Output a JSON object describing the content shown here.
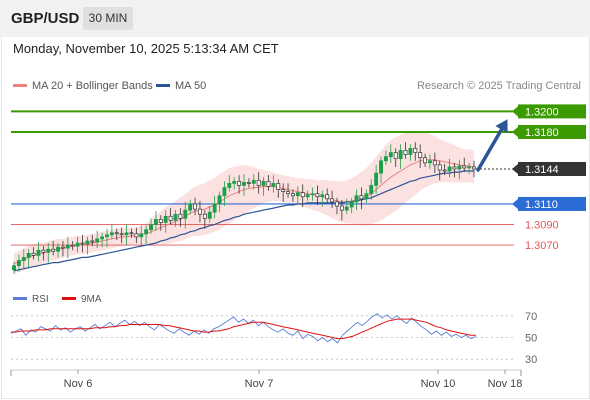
{
  "header": {
    "symbol": "GBP/USD",
    "timeframe": "30 MIN"
  },
  "datetime": "Monday, November 10, 2025 5:13:34 AM CET",
  "legend": {
    "ma20": "MA 20 + Bollinger Bands",
    "ma50": "MA 50",
    "credit": "Research © 2025 Trading Central"
  },
  "colors": {
    "ma20": "#f08080",
    "ma50": "#2c5596",
    "bull": "#1e9e4a",
    "bear": "#333333",
    "green_level": "#3a9a00",
    "blue_level": "#2c6cd6",
    "red_level": "#e05555",
    "current": "#333333"
  },
  "chart_data": [
    {
      "type": "candlestick",
      "title": "",
      "x_ticks": [
        "Nov 6",
        "Nov 7",
        "Nov 10",
        "Nov 18"
      ],
      "y_range": [
        1.3038,
        1.3214
      ],
      "levels": [
        {
          "value": 1.32,
          "label": "1.3200",
          "kind": "resistance"
        },
        {
          "value": 1.318,
          "label": "1.3180",
          "kind": "resistance"
        },
        {
          "value": 1.3144,
          "label": "1.3144",
          "kind": "current"
        },
        {
          "value": 1.311,
          "label": "1.3110",
          "kind": "pivot"
        },
        {
          "value": 1.309,
          "label": "1.3090",
          "kind": "support"
        },
        {
          "value": 1.307,
          "label": "1.3070",
          "kind": "support"
        }
      ],
      "close": [
        1.305,
        1.3055,
        1.3058,
        1.3062,
        1.306,
        1.3065,
        1.3063,
        1.3066,
        1.3064,
        1.3068,
        1.3067,
        1.307,
        1.3069,
        1.3072,
        1.3071,
        1.3074,
        1.3073,
        1.3076,
        1.3078,
        1.308,
        1.3082,
        1.3081,
        1.308,
        1.3082,
        1.3081,
        1.3078,
        1.3081,
        1.3085,
        1.309,
        1.3095,
        1.3092,
        1.3098,
        1.3094,
        1.31,
        1.3096,
        1.3104,
        1.311,
        1.3105,
        1.31,
        1.3096,
        1.3102,
        1.311,
        1.3118,
        1.3126,
        1.313,
        1.3132,
        1.3128,
        1.3131,
        1.313,
        1.3133,
        1.3128,
        1.3132,
        1.3127,
        1.313,
        1.3124,
        1.3122,
        1.312,
        1.3118,
        1.3121,
        1.3117,
        1.3119,
        1.312,
        1.3117,
        1.3119,
        1.3115,
        1.3112,
        1.3108,
        1.3104,
        1.3107,
        1.3112,
        1.3118,
        1.3115,
        1.312,
        1.3128,
        1.314,
        1.3152,
        1.3156,
        1.316,
        1.3154,
        1.3162,
        1.3158,
        1.3164,
        1.316,
        1.3155,
        1.315,
        1.3152,
        1.3148,
        1.3143,
        1.3142,
        1.3146,
        1.3144,
        1.3147,
        1.3145,
        1.3146,
        1.3144
      ],
      "ma20": [
        1.3052,
        1.3054,
        1.3056,
        1.3058,
        1.306,
        1.3061,
        1.3062,
        1.3064,
        1.3065,
        1.3066,
        1.3067,
        1.3068,
        1.3069,
        1.307,
        1.307,
        1.3071,
        1.3072,
        1.3073,
        1.3074,
        1.3075,
        1.3076,
        1.3077,
        1.3078,
        1.3078,
        1.3079,
        1.3079,
        1.308,
        1.3081,
        1.3083,
        1.3085,
        1.3087,
        1.3089,
        1.3091,
        1.3093,
        1.3095,
        1.3098,
        1.3101,
        1.3103,
        1.3104,
        1.3105,
        1.3107,
        1.3109,
        1.3112,
        1.3115,
        1.3118,
        1.312,
        1.3122,
        1.3124,
        1.3125,
        1.3126,
        1.3126,
        1.3127,
        1.3127,
        1.3127,
        1.3126,
        1.3125,
        1.3124,
        1.3123,
        1.3122,
        1.3121,
        1.312,
        1.3119,
        1.3118,
        1.3117,
        1.3116,
        1.3114,
        1.3113,
        1.3112,
        1.3112,
        1.3113,
        1.3114,
        1.3115,
        1.3117,
        1.312,
        1.3124,
        1.3128,
        1.3132,
        1.3136,
        1.3139,
        1.3142,
        1.3145,
        1.3148,
        1.315,
        1.3152,
        1.3153,
        1.3153,
        1.3153,
        1.3152,
        1.3151,
        1.315,
        1.3149,
        1.3148,
        1.3147,
        1.3147,
        1.3146
      ],
      "bb_width": [
        0.001,
        0.001,
        0.0011,
        0.0011,
        0.0011,
        0.0011,
        0.001,
        0.001,
        0.001,
        0.001,
        0.0009,
        0.0009,
        0.0009,
        0.0009,
        0.0009,
        0.0009,
        0.0009,
        0.0009,
        0.0009,
        0.0009,
        0.0009,
        0.0009,
        0.0009,
        0.0009,
        0.0008,
        0.0008,
        0.0009,
        0.001,
        0.0012,
        0.0014,
        0.0016,
        0.0018,
        0.0019,
        0.002,
        0.0021,
        0.0022,
        0.0023,
        0.0024,
        0.0025,
        0.0025,
        0.0026,
        0.0026,
        0.0027,
        0.0027,
        0.0027,
        0.0026,
        0.0025,
        0.0024,
        0.0022,
        0.002,
        0.0018,
        0.0016,
        0.0015,
        0.0014,
        0.0013,
        0.0013,
        0.0013,
        0.0013,
        0.0013,
        0.0014,
        0.0014,
        0.0015,
        0.0015,
        0.0016,
        0.0017,
        0.0018,
        0.0019,
        0.002,
        0.0021,
        0.0022,
        0.0024,
        0.0026,
        0.0028,
        0.003,
        0.0032,
        0.0034,
        0.0035,
        0.0036,
        0.0036,
        0.0035,
        0.0034,
        0.0033,
        0.0031,
        0.0029,
        0.0027,
        0.0025,
        0.0023,
        0.0021,
        0.002,
        0.0019,
        0.0018,
        0.0017,
        0.0016,
        0.0016,
        0.0016
      ],
      "ma50": [
        1.3045,
        1.3046,
        1.3047,
        1.3048,
        1.3049,
        1.305,
        1.3051,
        1.3052,
        1.3053,
        1.3053,
        1.3054,
        1.3055,
        1.3056,
        1.3057,
        1.3058,
        1.3058,
        1.3059,
        1.306,
        1.3061,
        1.3062,
        1.3063,
        1.3064,
        1.3065,
        1.3066,
        1.3067,
        1.3068,
        1.3069,
        1.307,
        1.3071,
        1.3072,
        1.3074,
        1.3075,
        1.3077,
        1.3078,
        1.308,
        1.3081,
        1.3083,
        1.3084,
        1.3086,
        1.3087,
        1.3089,
        1.309,
        1.3092,
        1.3094,
        1.3095,
        1.3097,
        1.3098,
        1.31,
        1.3101,
        1.3102,
        1.3103,
        1.3104,
        1.3105,
        1.3106,
        1.3107,
        1.3108,
        1.3109,
        1.3109,
        1.311,
        1.311,
        1.3111,
        1.3111,
        1.3111,
        1.3111,
        1.3111,
        1.3111,
        1.3111,
        1.3111,
        1.3112,
        1.3112,
        1.3113,
        1.3114,
        1.3115,
        1.3116,
        1.3118,
        1.312,
        1.3122,
        1.3124,
        1.3126,
        1.3128,
        1.313,
        1.3132,
        1.3133,
        1.3135,
        1.3136,
        1.3137,
        1.3138,
        1.3139,
        1.314,
        1.314,
        1.3141,
        1.3141,
        1.3142,
        1.3142,
        1.3142
      ]
    },
    {
      "type": "line",
      "legend": {
        "rsi": "RSI",
        "ma9": "9MA"
      },
      "y_range": [
        20,
        80
      ],
      "y_ticks": [
        "70",
        "50",
        "30"
      ],
      "rsi": [
        54,
        56,
        58,
        52,
        57,
        55,
        60,
        58,
        56,
        61,
        57,
        59,
        55,
        58,
        60,
        56,
        59,
        62,
        58,
        61,
        64,
        60,
        63,
        66,
        62,
        65,
        61,
        64,
        60,
        57,
        62,
        59,
        56,
        54,
        58,
        55,
        52,
        56,
        53,
        57,
        54,
        58,
        60,
        63,
        66,
        69,
        64,
        67,
        63,
        66,
        61,
        64,
        60,
        57,
        55,
        58,
        54,
        52,
        56,
        49,
        53,
        51,
        47,
        50,
        46,
        49,
        45,
        52,
        56,
        60,
        64,
        61,
        65,
        69,
        72,
        68,
        71,
        67,
        70,
        66,
        63,
        68,
        64,
        60,
        57,
        53,
        56,
        52,
        55,
        51,
        53,
        50,
        52,
        49,
        51
      ],
      "ma9": [
        55,
        55,
        56,
        56,
        56,
        57,
        57,
        57,
        58,
        58,
        58,
        58,
        58,
        58,
        58,
        58,
        58,
        59,
        59,
        59,
        60,
        60,
        61,
        61,
        62,
        62,
        62,
        62,
        62,
        62,
        62,
        61,
        61,
        60,
        59,
        58,
        57,
        56,
        56,
        55,
        55,
        56,
        56,
        57,
        58,
        60,
        61,
        62,
        63,
        64,
        64,
        64,
        63,
        62,
        61,
        60,
        59,
        58,
        57,
        56,
        55,
        54,
        53,
        52,
        51,
        50,
        49,
        49,
        50,
        51,
        53,
        55,
        57,
        59,
        61,
        63,
        65,
        66,
        67,
        67,
        67,
        67,
        66,
        65,
        64,
        62,
        60,
        59,
        57,
        56,
        55,
        54,
        53,
        52,
        52
      ]
    }
  ]
}
